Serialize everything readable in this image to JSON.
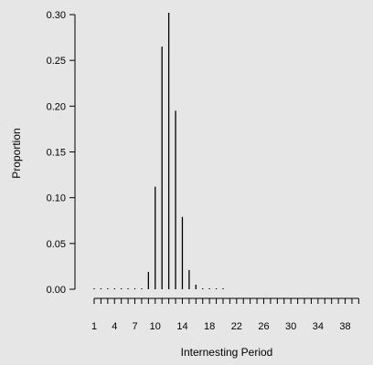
{
  "colors": {
    "background": "#e6e6e6",
    "ink": "#000000"
  },
  "chart_data": {
    "type": "bar",
    "style": "vertical-lines",
    "xlabel": "Internesting Period",
    "ylabel": "Proportion",
    "ylim": [
      0,
      0.3
    ],
    "yticks": [
      0.0,
      0.05,
      0.1,
      0.15,
      0.2,
      0.25,
      0.3
    ],
    "ytick_labels": [
      "0.00",
      "0.05",
      "0.10",
      "0.15",
      "0.20",
      "0.25",
      "0.30"
    ],
    "xlim": [
      1,
      40
    ],
    "xtick_labels": [
      "1",
      "4",
      "7",
      "10",
      "14",
      "18",
      "22",
      "26",
      "30",
      "34",
      "38"
    ],
    "xtick_values": [
      1,
      4,
      7,
      10,
      14,
      18,
      22,
      26,
      30,
      34,
      38
    ],
    "x": [
      1,
      2,
      3,
      4,
      5,
      6,
      7,
      8,
      9,
      10,
      11,
      12,
      13,
      14,
      15,
      16,
      17,
      18,
      19,
      20,
      21,
      22,
      23,
      24,
      25,
      26,
      27,
      28,
      29,
      30,
      31,
      32,
      33,
      34,
      35,
      36,
      37,
      38,
      39,
      40
    ],
    "values": [
      0,
      0,
      0,
      0,
      0,
      0,
      0,
      0.001,
      0.019,
      0.112,
      0.265,
      0.302,
      0.195,
      0.079,
      0.021,
      0.005,
      0.001,
      0.001,
      0.001,
      0.001,
      0,
      0,
      0,
      0,
      0,
      0,
      0,
      0,
      0,
      0,
      0,
      0,
      0,
      0,
      0,
      0,
      0,
      0,
      0,
      0
    ],
    "grid": false,
    "legend": "none"
  }
}
